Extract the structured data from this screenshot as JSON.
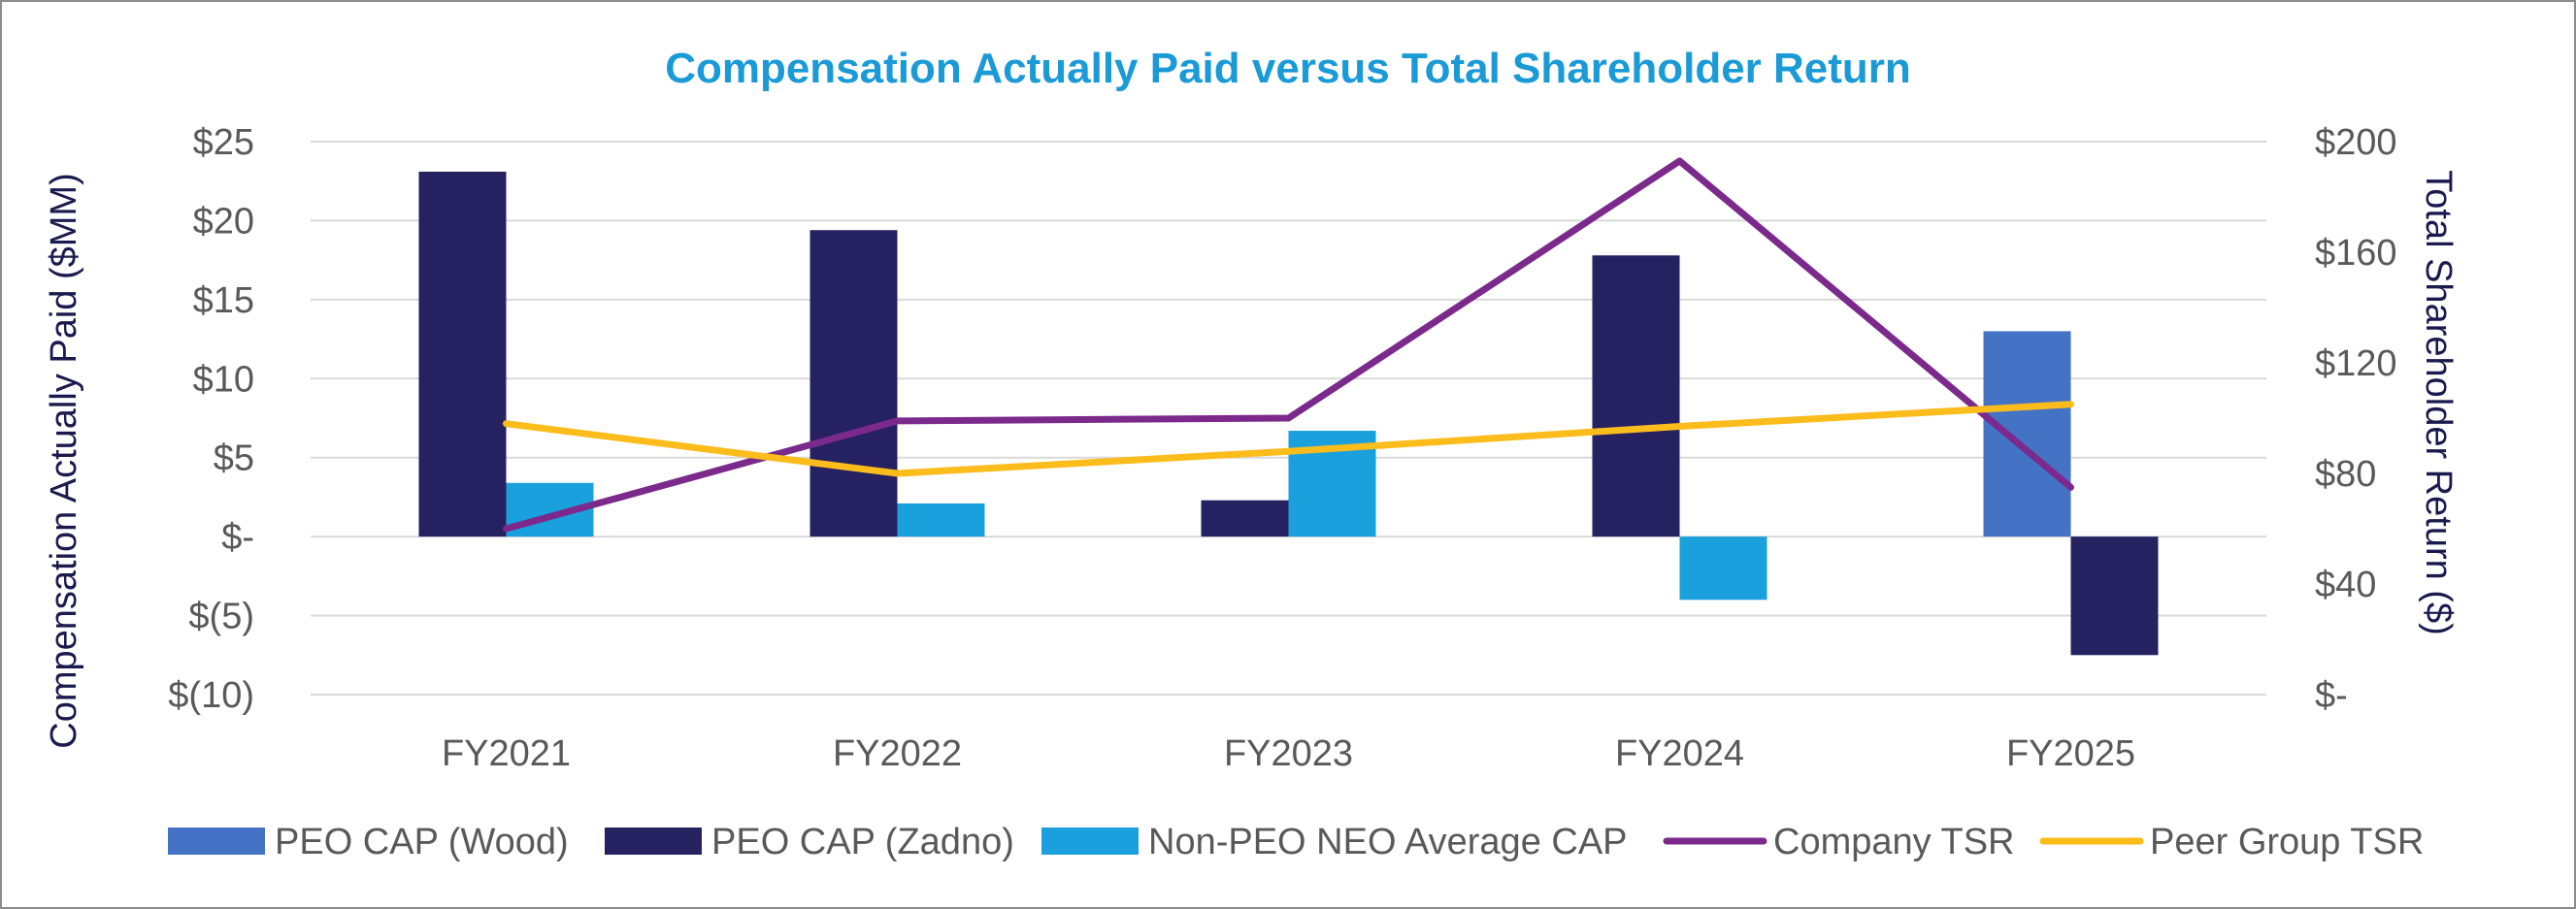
{
  "chart_data": {
    "type": "bar",
    "title": "Compensation Actually Paid versus Total Shareholder Return",
    "categories": [
      "FY2021",
      "FY2022",
      "FY2023",
      "FY2024",
      "FY2025"
    ],
    "ylabel": "Compensation Actually Paid ($MM)",
    "y2label": "Total Shareholder Return ($)",
    "ylim": [
      -10,
      25
    ],
    "y2lim": [
      0,
      200
    ],
    "yticks": [
      {
        "value": 25,
        "label": "$25"
      },
      {
        "value": 20,
        "label": "$20"
      },
      {
        "value": 15,
        "label": "$15"
      },
      {
        "value": 10,
        "label": "$10"
      },
      {
        "value": 5,
        "label": "$5"
      },
      {
        "value": 0,
        "label": "$-"
      },
      {
        "value": -5,
        "label": "$(5)"
      },
      {
        "value": -10,
        "label": "$(10)"
      }
    ],
    "y2ticks": [
      {
        "value": 200,
        "label": "$200"
      },
      {
        "value": 160,
        "label": "$160"
      },
      {
        "value": 120,
        "label": "$120"
      },
      {
        "value": 80,
        "label": "$80"
      },
      {
        "value": 40,
        "label": "$40"
      },
      {
        "value": 0,
        "label": "$-"
      }
    ],
    "grid": true,
    "legend_position": "bottom",
    "bar_series": [
      {
        "name": "PEO CAP (Wood)",
        "color": "#4472c4",
        "values": [
          null,
          null,
          null,
          null,
          13.0
        ]
      },
      {
        "name": "PEO CAP (Zadno)",
        "color": "#262262",
        "values": [
          23.1,
          19.4,
          2.3,
          17.8,
          -7.5
        ]
      },
      {
        "name": "Non-PEO NEO Average CAP",
        "color": "#1aa0dc",
        "values": [
          3.4,
          2.1,
          6.7,
          -4.0,
          null
        ]
      }
    ],
    "line_series": [
      {
        "name": "Company TSR",
        "color": "#7b2a8c",
        "axis": "right",
        "values": [
          60,
          99,
          100,
          193,
          75
        ]
      },
      {
        "name": "Peer Group TSR",
        "color": "#fbbc1c",
        "axis": "right",
        "values": [
          98,
          80,
          88,
          97,
          105
        ]
      }
    ],
    "legend": [
      {
        "name": "PEO CAP (Wood)",
        "kind": "bar",
        "color": "#4472c4"
      },
      {
        "name": "PEO CAP (Zadno)",
        "kind": "bar",
        "color": "#262262"
      },
      {
        "name": "Non-PEO NEO Average CAP",
        "kind": "bar",
        "color": "#1aa0dc"
      },
      {
        "name": "Company TSR",
        "kind": "line",
        "color": "#7b2a8c"
      },
      {
        "name": "Peer Group TSR",
        "kind": "line",
        "color": "#fbbc1c"
      }
    ],
    "title_color": "#1a9ad6"
  }
}
